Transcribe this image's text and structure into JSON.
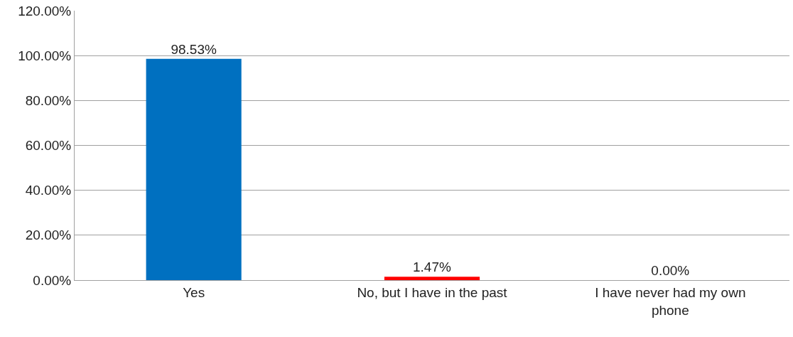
{
  "chart_data": {
    "type": "bar",
    "categories": [
      "Yes",
      "No, but I have in the past",
      "I have never had my own phone"
    ],
    "values": [
      98.53,
      1.47,
      0.0
    ],
    "colors": [
      "#0070c0",
      "#ff0000",
      "#0070c0"
    ],
    "value_labels": [
      "98.53%",
      "1.47%",
      "0.00%"
    ],
    "ylim": [
      0,
      120
    ],
    "yticks": [
      {
        "value": 0,
        "label": "0.00%"
      },
      {
        "value": 20,
        "label": "20.00%"
      },
      {
        "value": 40,
        "label": "40.00%"
      },
      {
        "value": 60,
        "label": "60.00%"
      },
      {
        "value": 80,
        "label": "80.00%"
      },
      {
        "value": 100,
        "label": "100.00%"
      },
      {
        "value": 120,
        "label": "120.00%"
      }
    ],
    "grid": "y",
    "legend": false
  }
}
